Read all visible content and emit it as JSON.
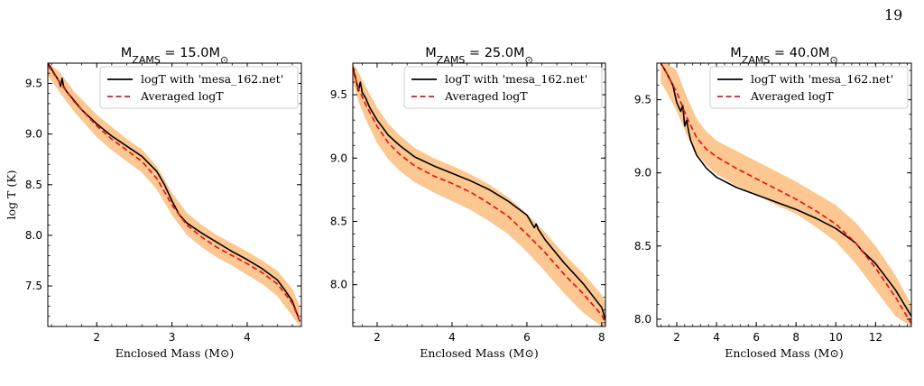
{
  "page": {
    "number": "19"
  },
  "colors": {
    "band": "#fcc48a",
    "black": "#000000",
    "red": "#ee1111"
  },
  "shared_ylabel": "log T (K)",
  "chart_data": [
    {
      "type": "line",
      "title": "M_ZAMS = 15.0M_⊙",
      "title_main": "M",
      "title_sub": "ZAMS",
      "title_tail": " = 15.0M",
      "title_star": "⊙",
      "xlabel": "Enclosed Mass (M⊙)",
      "xlim": [
        1.35,
        4.72
      ],
      "ylim": [
        7.1,
        9.7
      ],
      "xticks": [
        2,
        3,
        4
      ],
      "yticks": [
        7.5,
        8.0,
        8.5,
        9.0,
        9.5
      ],
      "xtick_labels": [
        "2",
        "3",
        "4"
      ],
      "ytick_labels": [
        "7.5",
        "8.0",
        "8.5",
        "9.0",
        "9.5"
      ],
      "legend": {
        "placement": "upper right",
        "entries": [
          "logT with 'mesa_162.net'",
          "Averaged logT"
        ]
      },
      "series": [
        {
          "name": "logT with 'mesa_162.net'",
          "color": "#000000",
          "style": "solid",
          "x": [
            1.35,
            1.45,
            1.5,
            1.52,
            1.54,
            1.56,
            1.6,
            1.7,
            1.8,
            2.0,
            2.2,
            2.4,
            2.6,
            2.8,
            2.9,
            3.0,
            3.1,
            3.2,
            3.4,
            3.6,
            3.8,
            4.0,
            4.2,
            4.4,
            4.5,
            4.6,
            4.7
          ],
          "y": [
            9.7,
            9.58,
            9.52,
            9.47,
            9.55,
            9.47,
            9.42,
            9.33,
            9.24,
            9.1,
            8.98,
            8.88,
            8.78,
            8.63,
            8.5,
            8.34,
            8.2,
            8.12,
            8.02,
            7.93,
            7.84,
            7.76,
            7.67,
            7.56,
            7.46,
            7.35,
            7.15
          ]
        },
        {
          "name": "Averaged logT",
          "color": "#ee1111",
          "style": "dashed",
          "x": [
            1.35,
            1.5,
            1.7,
            2.0,
            2.2,
            2.4,
            2.6,
            2.8,
            3.0,
            3.2,
            3.4,
            3.6,
            3.8,
            4.0,
            4.2,
            4.4,
            4.6,
            4.7
          ],
          "y": [
            9.68,
            9.52,
            9.32,
            9.08,
            8.95,
            8.84,
            8.73,
            8.56,
            8.3,
            8.1,
            7.98,
            7.88,
            7.8,
            7.72,
            7.63,
            7.52,
            7.33,
            7.15
          ]
        },
        {
          "name": "",
          "type": "band",
          "color": "#fcc48a",
          "x": [
            1.35,
            1.5,
            1.7,
            2.0,
            2.2,
            2.4,
            2.6,
            2.8,
            3.0,
            3.2,
            3.4,
            3.6,
            3.8,
            4.0,
            4.2,
            4.4,
            4.6,
            4.7
          ],
          "y_low": [
            9.58,
            9.42,
            9.22,
            8.97,
            8.84,
            8.73,
            8.62,
            8.45,
            8.2,
            8.0,
            7.88,
            7.78,
            7.7,
            7.61,
            7.52,
            7.4,
            7.2,
            7.1
          ],
          "y_high": [
            9.7,
            9.62,
            9.42,
            9.19,
            9.07,
            8.95,
            8.85,
            8.68,
            8.42,
            8.22,
            8.1,
            8.0,
            7.92,
            7.84,
            7.75,
            7.65,
            7.47,
            7.3
          ]
        }
      ]
    },
    {
      "type": "line",
      "title": "M_ZAMS = 25.0M_⊙",
      "title_main": "M",
      "title_sub": "ZAMS",
      "title_tail": " = 25.0M",
      "title_star": "⊙",
      "xlabel": "Enclosed Mass (M⊙)",
      "xlim": [
        1.35,
        8.1
      ],
      "ylim": [
        7.67,
        9.75
      ],
      "xticks": [
        2,
        4,
        6,
        8
      ],
      "yticks": [
        8.0,
        8.5,
        9.0,
        9.5
      ],
      "xtick_labels": [
        "2",
        "4",
        "6",
        "8"
      ],
      "ytick_labels": [
        "8.0",
        "8.5",
        "9.0",
        "9.5"
      ],
      "legend": {
        "placement": "upper right",
        "entries": [
          "logT with 'mesa_162.net'",
          "Averaged logT"
        ]
      },
      "series": [
        {
          "name": "logT with 'mesa_162.net'",
          "color": "#000000",
          "style": "solid",
          "x": [
            1.35,
            1.45,
            1.5,
            1.55,
            1.6,
            1.7,
            1.8,
            2.0,
            2.3,
            2.6,
            3.0,
            3.5,
            4.0,
            4.5,
            5.0,
            5.5,
            6.0,
            6.2,
            6.25,
            6.3,
            6.5,
            7.0,
            7.5,
            8.0,
            8.1
          ],
          "y": [
            9.72,
            9.6,
            9.53,
            9.6,
            9.52,
            9.47,
            9.4,
            9.3,
            9.18,
            9.1,
            9.01,
            8.94,
            8.88,
            8.82,
            8.75,
            8.66,
            8.55,
            8.45,
            8.48,
            8.44,
            8.35,
            8.17,
            8.01,
            7.82,
            7.72
          ]
        },
        {
          "name": "Averaged logT",
          "color": "#ee1111",
          "style": "dashed",
          "x": [
            1.35,
            1.5,
            1.7,
            2.0,
            2.3,
            2.6,
            3.0,
            3.5,
            4.0,
            4.5,
            5.0,
            5.5,
            6.0,
            6.5,
            7.0,
            7.5,
            8.0,
            8.1
          ],
          "y": [
            9.7,
            9.55,
            9.42,
            9.25,
            9.12,
            9.03,
            8.94,
            8.86,
            8.8,
            8.73,
            8.64,
            8.54,
            8.4,
            8.25,
            8.08,
            7.93,
            7.76,
            7.7
          ]
        },
        {
          "name": "",
          "type": "band",
          "color": "#fcc48a",
          "x": [
            1.35,
            1.5,
            1.7,
            2.0,
            2.3,
            2.6,
            3.0,
            3.5,
            4.0,
            4.5,
            5.0,
            5.5,
            6.0,
            6.5,
            7.0,
            7.5,
            8.0,
            8.1
          ],
          "y_low": [
            9.6,
            9.45,
            9.3,
            9.12,
            8.99,
            8.9,
            8.81,
            8.73,
            8.66,
            8.59,
            8.5,
            8.4,
            8.26,
            8.1,
            7.93,
            7.78,
            7.67,
            7.67
          ],
          "y_high": [
            9.75,
            9.68,
            9.56,
            9.4,
            9.27,
            9.18,
            9.08,
            9.0,
            8.94,
            8.87,
            8.79,
            8.69,
            8.56,
            8.41,
            8.24,
            8.09,
            7.92,
            7.86
          ]
        }
      ]
    },
    {
      "type": "line",
      "title": "M_ZAMS = 40.0M_⊙",
      "title_main": "M",
      "title_sub": "ZAMS",
      "title_tail": " = 40.0M",
      "title_star": "⊙",
      "xlabel": "Enclosed Mass (M⊙)",
      "xlim": [
        1.0,
        13.8
      ],
      "ylim": [
        7.95,
        9.75
      ],
      "xticks": [
        2,
        4,
        6,
        8,
        10,
        12
      ],
      "yticks": [
        8.0,
        8.5,
        9.0,
        9.5
      ],
      "xtick_labels": [
        "2",
        "4",
        "6",
        "8",
        "10",
        "12"
      ],
      "ytick_labels": [
        "8.0",
        "8.5",
        "9.0",
        "9.5"
      ],
      "legend": {
        "placement": "upper right",
        "entries": [
          "logT with 'mesa_162.net'",
          "Averaged logT"
        ]
      },
      "series": [
        {
          "name": "logT with 'mesa_162.net'",
          "color": "#000000",
          "style": "solid",
          "x": [
            1.2,
            1.5,
            1.8,
            2.0,
            2.2,
            2.3,
            2.4,
            2.5,
            2.6,
            2.7,
            3.0,
            3.5,
            4.0,
            5.0,
            6.0,
            7.0,
            8.0,
            9.0,
            10.0,
            11.0,
            11.3,
            12.0,
            13.0,
            13.8
          ],
          "y": [
            9.75,
            9.68,
            9.6,
            9.48,
            9.42,
            9.46,
            9.32,
            9.36,
            9.28,
            9.22,
            9.12,
            9.03,
            8.97,
            8.9,
            8.85,
            8.8,
            8.75,
            8.69,
            8.62,
            8.52,
            8.47,
            8.38,
            8.2,
            8.02
          ]
        },
        {
          "name": "Averaged logT",
          "color": "#ee1111",
          "style": "dashed",
          "x": [
            1.2,
            1.5,
            2.0,
            2.5,
            3.0,
            3.5,
            4.0,
            5.0,
            6.0,
            7.0,
            8.0,
            9.0,
            10.0,
            11.0,
            12.0,
            13.0,
            13.8
          ],
          "y": [
            9.75,
            9.68,
            9.55,
            9.38,
            9.24,
            9.16,
            9.11,
            9.03,
            8.96,
            8.89,
            8.82,
            8.74,
            8.65,
            8.52,
            8.35,
            8.15,
            7.97
          ]
        },
        {
          "name": "",
          "type": "band",
          "color": "#fcc48a",
          "x": [
            1.2,
            1.5,
            2.0,
            2.5,
            3.0,
            3.5,
            4.0,
            5.0,
            6.0,
            7.0,
            8.0,
            9.0,
            10.0,
            11.0,
            12.0,
            13.0,
            13.8
          ],
          "y_low": [
            9.62,
            9.55,
            9.42,
            9.26,
            9.13,
            9.05,
            8.99,
            8.91,
            8.85,
            8.78,
            8.72,
            8.63,
            8.53,
            8.38,
            8.2,
            8.02,
            7.95
          ],
          "y_high": [
            9.75,
            9.75,
            9.7,
            9.52,
            9.37,
            9.28,
            9.22,
            9.15,
            9.08,
            9.01,
            8.94,
            8.86,
            8.78,
            8.66,
            8.5,
            8.3,
            8.1
          ]
        }
      ]
    }
  ]
}
